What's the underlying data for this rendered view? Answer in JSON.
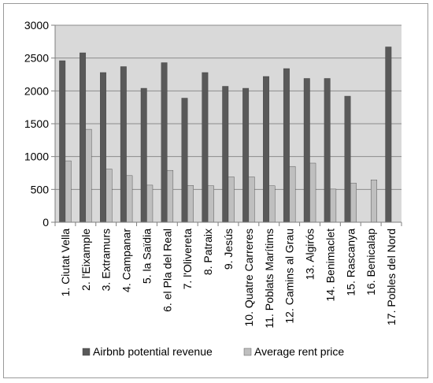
{
  "chart_data": {
    "type": "bar",
    "categories": [
      "1. Ciutat Vella",
      "2. l'Eixample",
      "3. Extramurs",
      "4. Campanar",
      "5. la Saïdia",
      "6. el Pla del Real",
      "7. l'Olivereta",
      "8. Patraix",
      "9. Jesús",
      "10. Quatre Carreres",
      "11. Poblats Marítims",
      "12. Camins al Grau",
      "13. Algirós",
      "14. Benimaclet",
      "15. Rascanya",
      "16. Benicalap",
      "17. Pobles del Nord"
    ],
    "series": [
      {
        "name": "Airbnb potential revenue",
        "color": "#595959",
        "values": [
          2460,
          2580,
          2280,
          2370,
          2040,
          2430,
          1890,
          2280,
          2070,
          2040,
          2220,
          2340,
          2190,
          2190,
          1920,
          null,
          2670
        ]
      },
      {
        "name": "Average rent price",
        "color": "#bfbfbf",
        "values": [
          935,
          1415,
          810,
          710,
          565,
          790,
          560,
          555,
          690,
          690,
          555,
          850,
          900,
          505,
          595,
          645,
          null
        ]
      }
    ],
    "title": "",
    "xlabel": "",
    "ylabel": "",
    "ylim": [
      0,
      3000
    ],
    "yticks": [
      0,
      500,
      1000,
      1500,
      2000,
      2500,
      3000
    ],
    "grid": true,
    "legend": "bottom",
    "plot_background": "#d9d9d9"
  }
}
